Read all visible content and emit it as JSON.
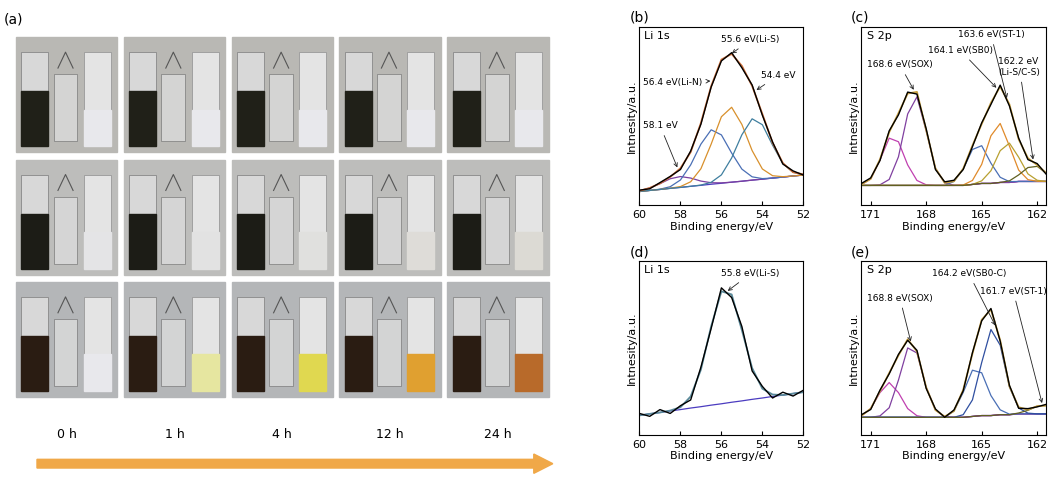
{
  "photo_panel": {
    "label": "(a)",
    "time_labels": [
      "0 h",
      "1 h",
      "4 h",
      "12 h",
      "24 h"
    ]
  },
  "chart_data": [
    {
      "type": "line",
      "label": "(b)",
      "title": "Li 1s",
      "x_label": "Binding energy/eV",
      "y_label": "Intnesity/a.u.",
      "x": [
        60,
        59.5,
        59,
        58.5,
        58,
        57.5,
        57,
        56.5,
        56,
        55.5,
        55,
        54.5,
        54,
        53.5,
        53,
        52.5,
        52
      ],
      "xlim": [
        60,
        52
      ],
      "xticks": [
        60,
        58,
        56,
        54,
        52
      ],
      "ylim": [
        0,
        130
      ],
      "tick_labels": "x",
      "series": [
        {
          "color": "#000000",
          "values": [
            11,
            12,
            16.5,
            21,
            26,
            39.5,
            59,
            86,
            105,
            111,
            100,
            87.5,
            65.5,
            46,
            30,
            25,
            22
          ]
        },
        {
          "color": "#d0703a",
          "values": [
            10.5,
            12.6,
            15.9,
            20.6,
            26.9,
            38.7,
            59.9,
            86.6,
            106,
            110.1,
            101.4,
            86.8,
            66.4,
            45.4,
            30.7,
            24,
            22.5
          ]
        },
        {
          "color": "#4b3cc0",
          "values": [
            10,
            10.8,
            11.5,
            12.3,
            13,
            13.8,
            14.5,
            15.3,
            16,
            16.8,
            17.5,
            18.3,
            19,
            19.8,
            20.5,
            21.3,
            22
          ]
        },
        {
          "color": "#7b3fa0",
          "values": [
            10.5,
            12.6,
            15.7,
            19.3,
            20.9,
            19.8,
            17.6,
            16.4,
            16.3,
            16.8,
            17.5,
            18.3,
            19,
            19.8,
            20.5,
            21.3,
            22
          ]
        },
        {
          "color": "#4a6fb5",
          "values": [
            10,
            10.8,
            11.7,
            13.5,
            18.4,
            29.4,
            44.5,
            54.9,
            51.2,
            38,
            26.3,
            20.7,
            19.4,
            19.8,
            20.5,
            21.3,
            22
          ]
        },
        {
          "color": "#d8902c",
          "values": [
            10,
            10.8,
            11.5,
            12.4,
            13.6,
            17.1,
            26.6,
            44.5,
            64.4,
            71.3,
            58.8,
            39.8,
            26.4,
            21.5,
            20.8,
            21.3,
            22
          ]
        },
        {
          "color": "#3f7f9f",
          "values": [
            10,
            10.8,
            11.5,
            12.3,
            13,
            13.8,
            14.7,
            16.7,
            22.1,
            34.4,
            51.3,
            62.9,
            58.6,
            43.7,
            30.4,
            24,
            22.5
          ]
        }
      ],
      "annotations": [
        {
          "text": "58.1 eV",
          "x": 58.1
        },
        {
          "text": "56.4 eV(Li-N)",
          "x": 56.4
        },
        {
          "text": "55.6 eV(Li-S)",
          "x": 55.6
        },
        {
          "text": "54.4 eV",
          "x": 54.4
        }
      ]
    },
    {
      "type": "line",
      "label": "(c)",
      "title": "S 2p",
      "x_label": "Binding energy/eV",
      "y_label": "Intnesity/a.u.",
      "x": [
        171.5,
        171,
        170.5,
        170,
        169.5,
        169,
        168.5,
        168,
        167.5,
        167,
        166.5,
        166,
        165.5,
        165,
        164.5,
        164,
        163.5,
        163,
        162.5,
        162,
        161.5
      ],
      "xlim": [
        171.5,
        161.5
      ],
      "xticks": [
        171,
        168,
        165,
        162
      ],
      "ylim": [
        0,
        90
      ],
      "tick_labels": "x",
      "series": [
        {
          "color": "#000000",
          "values": [
            11,
            13.8,
            22.5,
            37.5,
            45.5,
            57,
            56,
            38.5,
            18,
            11.8,
            12.6,
            18,
            29.5,
            41.5,
            50.8,
            60.5,
            50,
            33.8,
            23,
            21,
            15.5
          ]
        },
        {
          "color": "#c8a040",
          "values": [
            10.5,
            13.3,
            23.1,
            36.8,
            46.4,
            56.3,
            57.1,
            37.8,
            18.6,
            11.3,
            12.1,
            18.4,
            30.1,
            40.9,
            51.6,
            59.8,
            50.8,
            33.2,
            23.7,
            20.3,
            16.1
          ]
        },
        {
          "color": "#4b3cc0",
          "values": [
            10,
            10,
            10,
            10,
            10,
            10,
            10,
            10,
            10,
            10,
            10,
            10,
            10.5,
            11,
            11,
            11.5,
            11.5,
            12,
            12,
            12,
            12
          ]
        },
        {
          "color": "#c040b0",
          "values": [
            10.5,
            13.3,
            22.8,
            33.8,
            32,
            20.3,
            12.5,
            10.3,
            10,
            10,
            10,
            10,
            10.5,
            11,
            11,
            11.5,
            11.5,
            12,
            12,
            12,
            12
          ]
        },
        {
          "color": "#8040a0",
          "values": [
            10,
            10,
            10.3,
            13,
            24.4,
            46,
            54.6,
            37.5,
            18.6,
            11.3,
            10.1,
            10,
            10.5,
            11,
            11,
            11.5,
            11.5,
            12,
            12,
            12,
            12
          ]
        },
        {
          "color": "#4a6fb5",
          "values": [
            10,
            10,
            10,
            10,
            10,
            10,
            10,
            10,
            10,
            10,
            12,
            18.2,
            28.1,
            30,
            21.2,
            14.1,
            11.9,
            12,
            12,
            12,
            12
          ]
        },
        {
          "color": "#e08a2a",
          "values": [
            10,
            10,
            10,
            10,
            10,
            10,
            10,
            10,
            10,
            10,
            10,
            10.2,
            12.5,
            20.6,
            35,
            41.2,
            29.8,
            17.7,
            12.9,
            12.1,
            12
          ]
        },
        {
          "color": "#b8a030",
          "values": [
            10,
            10,
            10,
            10,
            10,
            10,
            10,
            10,
            10,
            10,
            10,
            10,
            10.5,
            12.3,
            17.4,
            27.5,
            31.3,
            24.2,
            15.8,
            12.6,
            12
          ]
        },
        {
          "color": "#606020",
          "values": [
            10,
            10,
            10,
            10,
            10,
            10,
            10,
            10,
            10,
            10,
            10,
            10,
            10.5,
            11,
            11,
            11.5,
            12.3,
            15.3,
            19,
            19.6,
            16.1
          ]
        }
      ],
      "annotations": [
        {
          "text": "168.6 eV(SOX)",
          "x": 168.6
        },
        {
          "text": "164.1 eV(SB0)",
          "x": 164.1
        },
        {
          "text": "163.6 eV(ST-1)",
          "x": 163.6
        },
        {
          "text": "162.2 eV\n(Li-S/C-S)",
          "x": 162.2
        }
      ]
    },
    {
      "type": "line",
      "label": "(d)",
      "title": "Li 1s",
      "x_label": "Binding energy/eV",
      "y_label": "Intnesity/a.u.",
      "x": [
        60,
        59.5,
        59,
        58.5,
        58,
        57.5,
        57,
        56.5,
        56,
        55.5,
        55,
        54.5,
        54,
        53.5,
        53,
        52.5,
        52
      ],
      "xlim": [
        60,
        52
      ],
      "xticks": [
        60,
        58,
        56,
        54,
        52
      ],
      "ylim": [
        0,
        90
      ],
      "tick_labels": "x",
      "series": [
        {
          "color": "#000000",
          "values": [
            11,
            9.5,
            13,
            11,
            15,
            18,
            35,
            55,
            76,
            71,
            56,
            33,
            25,
            19,
            22,
            20,
            23
          ]
        },
        {
          "color": "#5a8a9a",
          "values": [
            10,
            10.8,
            11.5,
            12.5,
            14.2,
            19.8,
            33.7,
            56.1,
            74.2,
            72.6,
            54.1,
            34.5,
            23.8,
            20.8,
            20.5,
            21.3,
            22
          ]
        },
        {
          "color": "#4b3cc0",
          "values": [
            10,
            10.8,
            11.5,
            12.3,
            13,
            13.8,
            14.5,
            15.3,
            16,
            16.8,
            17.5,
            18.3,
            19,
            19.8,
            20.5,
            21.3,
            22
          ]
        }
      ],
      "annotations": [
        {
          "text": "55.8 eV(Li-S)",
          "x": 55.8
        }
      ]
    },
    {
      "type": "line",
      "label": "(e)",
      "title": "S 2p",
      "x_label": "Binding energy/eV",
      "y_label": "Intnesity/a.u.",
      "x": [
        171.5,
        171,
        170.5,
        170,
        169.5,
        169,
        168.5,
        168,
        167.5,
        167,
        166.5,
        166,
        165.5,
        165,
        164.5,
        164,
        163.5,
        163,
        162.5,
        162,
        161.5
      ],
      "xlim": [
        171.5,
        161.5
      ],
      "xticks": [
        171,
        168,
        165,
        162
      ],
      "ylim": [
        0,
        100
      ],
      "tick_labels": "x",
      "series": [
        {
          "color": "#000000",
          "values": [
            11.5,
            14.5,
            25.6,
            35,
            46.2,
            54.3,
            48.5,
            26.6,
            14.8,
            10,
            14.2,
            25.2,
            47.2,
            65.5,
            72.6,
            53.8,
            28.4,
            15.2,
            15,
            16,
            17.5
          ]
        },
        {
          "color": "#c8a040",
          "values": [
            10.9,
            15,
            25,
            35.5,
            45.6,
            54.9,
            47.9,
            27.2,
            14.2,
            10.4,
            13.6,
            25.8,
            46.6,
            66.1,
            72,
            54.3,
            27.8,
            15.8,
            14.4,
            16.4,
            16.8
          ]
        },
        {
          "color": "#4b3cc0",
          "values": [
            10,
            10,
            10,
            10,
            10,
            10,
            10,
            10,
            10,
            10,
            10,
            10,
            10.5,
            11,
            11,
            11.5,
            11.5,
            12,
            12,
            12,
            12
          ]
        },
        {
          "color": "#c040b0",
          "values": [
            10.9,
            15,
            24.2,
            30,
            24.2,
            15,
            10.9,
            10,
            10,
            10,
            10,
            10,
            10.5,
            11,
            11,
            11.5,
            11.5,
            12,
            12,
            12,
            12
          ]
        },
        {
          "color": "#8040a0",
          "values": [
            10,
            10,
            10.8,
            15.5,
            31.4,
            49.9,
            47,
            27.2,
            14.2,
            10.4,
            10,
            10,
            10.5,
            11,
            11,
            11.5,
            11.5,
            12,
            12,
            12,
            12
          ]
        },
        {
          "color": "#4a6fb5",
          "values": [
            10,
            10,
            10,
            10,
            10,
            10,
            10,
            10,
            10,
            10,
            13.6,
            24.3,
            37.1,
            35.6,
            22.5,
            14.3,
            11.8,
            12,
            12,
            12,
            12
          ]
        },
        {
          "color": "#2f4fa0",
          "values": [
            10,
            10,
            10,
            10,
            10,
            10,
            10,
            10,
            10,
            10,
            10,
            11.5,
            20,
            41.5,
            60.5,
            51.5,
            27.5,
            15.3,
            12.4,
            12,
            12
          ]
        },
        {
          "color": "#606020",
          "values": [
            10,
            10,
            10,
            10,
            10,
            10,
            10,
            10,
            10,
            10,
            10,
            10,
            10.5,
            11,
            11,
            11.5,
            11.5,
            12.5,
            14,
            16.4,
            16.8
          ]
        }
      ],
      "annotations": [
        {
          "text": "168.8 eV(SOX)",
          "x": 168.8
        },
        {
          "text": "164.2 eV(SB0-C)",
          "x": 164.2
        },
        {
          "text": "161.7 eV(ST-1)",
          "x": 161.7
        }
      ]
    }
  ]
}
